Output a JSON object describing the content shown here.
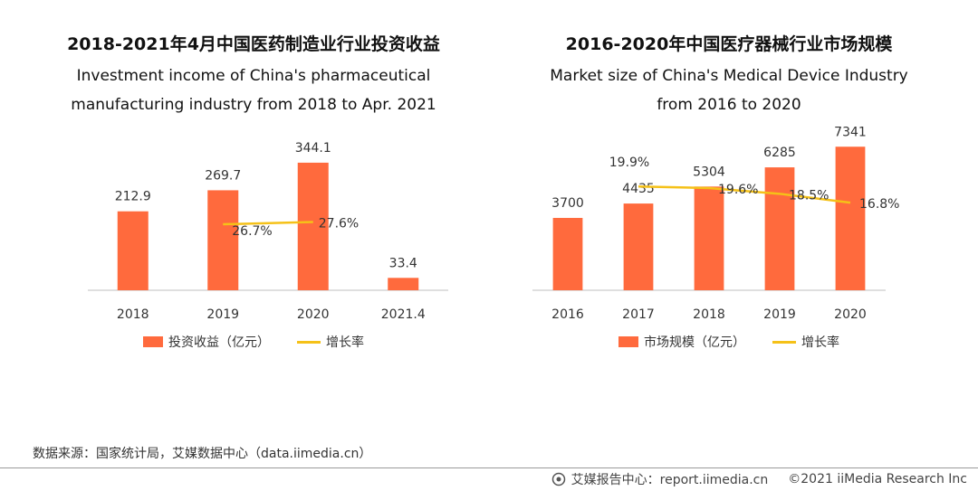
{
  "colors": {
    "bar": "#FF6A3D",
    "line": "#F5C118",
    "axis": "#bfbfbf",
    "text": "#333333"
  },
  "chart_data": [
    {
      "type": "bar",
      "title": "2018-2021年4月中国医药制造业行业投资收益",
      "subtitle": "Investment income of China's pharmaceutical\nmanufacturing industry from 2018 to Apr. 2021",
      "categories": [
        "2018",
        "2019",
        "2020",
        "2021.4"
      ],
      "series": [
        {
          "name": "投资收益（亿元）",
          "type": "bar",
          "values": [
            212.9,
            269.7,
            344.1,
            33.4
          ],
          "labels": [
            "212.9",
            "269.7",
            "344.1",
            "33.4"
          ]
        },
        {
          "name": "增长率",
          "type": "line",
          "values": [
            null,
            26.7,
            27.6,
            null
          ],
          "labels": [
            "",
            "26.7%",
            "27.6%",
            ""
          ]
        }
      ],
      "ylim": [
        0,
        400
      ],
      "rate_lim": [
        0,
        60
      ],
      "legend": "bottom",
      "grid": false
    },
    {
      "type": "bar",
      "title": "2016-2020年中国医疗器械行业市场规模",
      "subtitle": "Market size of China's Medical Device Industry\nfrom 2016 to 2020",
      "categories": [
        "2016",
        "2017",
        "2018",
        "2019",
        "2020"
      ],
      "series": [
        {
          "name": "市场规模（亿元）",
          "type": "bar",
          "values": [
            3700,
            4435,
            5304,
            6285,
            7341
          ],
          "labels": [
            "3700",
            "4435",
            "5304",
            "6285",
            "7341"
          ]
        },
        {
          "name": "增长率",
          "type": "line",
          "values": [
            null,
            19.9,
            19.6,
            18.5,
            16.8
          ],
          "labels": [
            "",
            "19.9%",
            "19.6%",
            "18.5%",
            "16.8%"
          ]
        }
      ],
      "ylim": [
        0,
        8000
      ],
      "rate_lim": [
        0,
        30
      ],
      "legend": "bottom",
      "grid": false
    }
  ],
  "source": "数据来源：国家统计局，艾媒数据中心（data.iimedia.cn）",
  "footer": {
    "report_label": "艾媒报告中心：report.iimedia.cn",
    "copyright": "©2021  iiMedia Research  Inc"
  }
}
